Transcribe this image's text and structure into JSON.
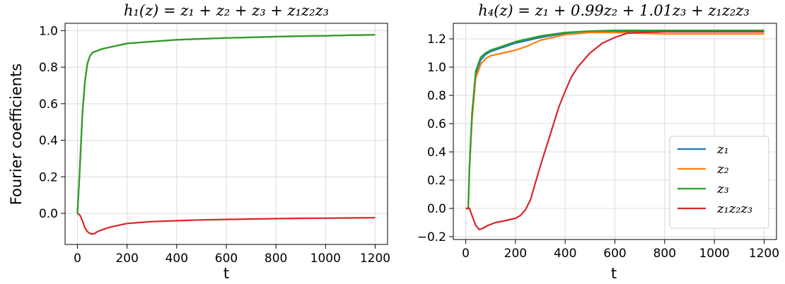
{
  "chart_data": [
    {
      "type": "line",
      "title": "h₁(z) = z₁ + z₂ + z₃ + z₁z₂z₃",
      "xlabel": "t",
      "ylabel": "Fourier coefficients",
      "xlim": [
        -50,
        1250
      ],
      "ylim": [
        -0.17,
        1.04
      ],
      "xticks": [
        0,
        200,
        400,
        600,
        800,
        1000,
        1200
      ],
      "yticks": [
        0.0,
        0.2,
        0.4,
        0.6,
        0.8,
        1.0
      ],
      "ytick_labels": [
        "0.0",
        "0.2",
        "0.4",
        "0.6",
        "0.8",
        "1.0"
      ],
      "grid": true,
      "series": [
        {
          "name": "z₁",
          "color": "#1f77b4",
          "x": [
            0,
            8,
            20,
            30,
            40,
            50,
            60,
            80,
            100,
            150,
            200,
            250,
            300,
            400,
            500,
            600,
            700,
            800,
            900,
            1000,
            1100,
            1200
          ],
          "y": [
            0,
            0.2,
            0.55,
            0.72,
            0.82,
            0.86,
            0.88,
            0.89,
            0.9,
            0.915,
            0.93,
            0.935,
            0.94,
            0.95,
            0.955,
            0.96,
            0.963,
            0.967,
            0.97,
            0.972,
            0.975,
            0.977
          ]
        },
        {
          "name": "z₂",
          "color": "#ff7f0e",
          "x": [
            0,
            8,
            20,
            30,
            40,
            50,
            60,
            80,
            100,
            150,
            200,
            250,
            300,
            400,
            500,
            600,
            700,
            800,
            900,
            1000,
            1100,
            1200
          ],
          "y": [
            0,
            0.2,
            0.55,
            0.72,
            0.82,
            0.86,
            0.88,
            0.89,
            0.9,
            0.915,
            0.93,
            0.935,
            0.94,
            0.95,
            0.955,
            0.96,
            0.963,
            0.967,
            0.97,
            0.972,
            0.975,
            0.977
          ]
        },
        {
          "name": "z₃",
          "color": "#2ca02c",
          "x": [
            0,
            8,
            20,
            30,
            40,
            50,
            60,
            80,
            100,
            150,
            200,
            250,
            300,
            400,
            500,
            600,
            700,
            800,
            900,
            1000,
            1100,
            1200
          ],
          "y": [
            0,
            0.2,
            0.55,
            0.72,
            0.82,
            0.86,
            0.88,
            0.89,
            0.9,
            0.915,
            0.93,
            0.935,
            0.94,
            0.95,
            0.955,
            0.96,
            0.963,
            0.967,
            0.97,
            0.972,
            0.975,
            0.977
          ]
        },
        {
          "name": "z₁z₂z₃",
          "color": "#d62728",
          "x": [
            0,
            10,
            20,
            30,
            40,
            50,
            60,
            70,
            80,
            100,
            120,
            150,
            200,
            250,
            300,
            400,
            500,
            600,
            700,
            800,
            900,
            1000,
            1100,
            1200
          ],
          "y": [
            0,
            -0.01,
            -0.04,
            -0.08,
            -0.1,
            -0.11,
            -0.113,
            -0.11,
            -0.1,
            -0.09,
            -0.08,
            -0.07,
            -0.055,
            -0.05,
            -0.045,
            -0.04,
            -0.036,
            -0.033,
            -0.031,
            -0.029,
            -0.027,
            -0.026,
            -0.025,
            -0.024
          ]
        }
      ]
    },
    {
      "type": "line",
      "title": "h₄(z) = z₁ + 0.99z₂ + 1.01z₃ + z₁z₂z₃",
      "xlabel": "t",
      "ylabel": "",
      "xlim": [
        -50,
        1250
      ],
      "ylim": [
        -0.22,
        1.31
      ],
      "xticks": [
        0,
        200,
        400,
        600,
        800,
        1000,
        1200
      ],
      "yticks": [
        -0.2,
        0.0,
        0.2,
        0.4,
        0.6,
        0.8,
        1.0,
        1.2
      ],
      "ytick_labels": [
        "−0.2",
        "0.0",
        "0.2",
        "0.4",
        "0.6",
        "0.8",
        "1.0",
        "1.2"
      ],
      "grid": true,
      "legend": "lower-right",
      "series": [
        {
          "name": "z₁",
          "color": "#1f77b4",
          "x": [
            0,
            10,
            15,
            25,
            40,
            60,
            80,
            100,
            150,
            200,
            250,
            300,
            400,
            500,
            600,
            700,
            800,
            900,
            1000,
            1100,
            1200
          ],
          "y": [
            0,
            0,
            0.3,
            0.65,
            0.95,
            1.05,
            1.09,
            1.11,
            1.14,
            1.17,
            1.19,
            1.21,
            1.24,
            1.25,
            1.25,
            1.255,
            1.255,
            1.255,
            1.255,
            1.255,
            1.255
          ]
        },
        {
          "name": "z₂",
          "color": "#ff7f0e",
          "x": [
            0,
            10,
            15,
            25,
            40,
            60,
            80,
            100,
            150,
            200,
            250,
            300,
            400,
            500,
            600,
            700,
            800,
            900,
            1000,
            1100,
            1200
          ],
          "y": [
            0,
            0,
            0.28,
            0.62,
            0.92,
            1.02,
            1.06,
            1.08,
            1.1,
            1.12,
            1.15,
            1.19,
            1.23,
            1.245,
            1.245,
            1.24,
            1.235,
            1.235,
            1.235,
            1.235,
            1.235
          ]
        },
        {
          "name": "z₃",
          "color": "#2ca02c",
          "x": [
            0,
            10,
            15,
            25,
            40,
            60,
            80,
            100,
            150,
            200,
            250,
            300,
            400,
            500,
            600,
            700,
            800,
            900,
            1000,
            1100,
            1200
          ],
          "y": [
            0,
            0,
            0.31,
            0.67,
            0.97,
            1.07,
            1.1,
            1.12,
            1.15,
            1.18,
            1.2,
            1.22,
            1.245,
            1.255,
            1.26,
            1.26,
            1.26,
            1.26,
            1.26,
            1.26,
            1.26
          ]
        },
        {
          "name": "z₁z₂z₃",
          "color": "#d62728",
          "x": [
            0,
            15,
            25,
            40,
            55,
            70,
            90,
            120,
            150,
            200,
            220,
            240,
            260,
            280,
            300,
            325,
            350,
            375,
            400,
            425,
            450,
            500,
            550,
            600,
            650,
            700,
            800,
            900,
            1000,
            1100,
            1200
          ],
          "y": [
            0,
            0,
            -0.05,
            -0.12,
            -0.15,
            -0.14,
            -0.12,
            -0.1,
            -0.09,
            -0.07,
            -0.05,
            -0.01,
            0.06,
            0.18,
            0.3,
            0.44,
            0.58,
            0.72,
            0.83,
            0.93,
            1.0,
            1.1,
            1.17,
            1.21,
            1.24,
            1.245,
            1.25,
            1.25,
            1.25,
            1.25,
            1.25
          ]
        }
      ]
    }
  ]
}
